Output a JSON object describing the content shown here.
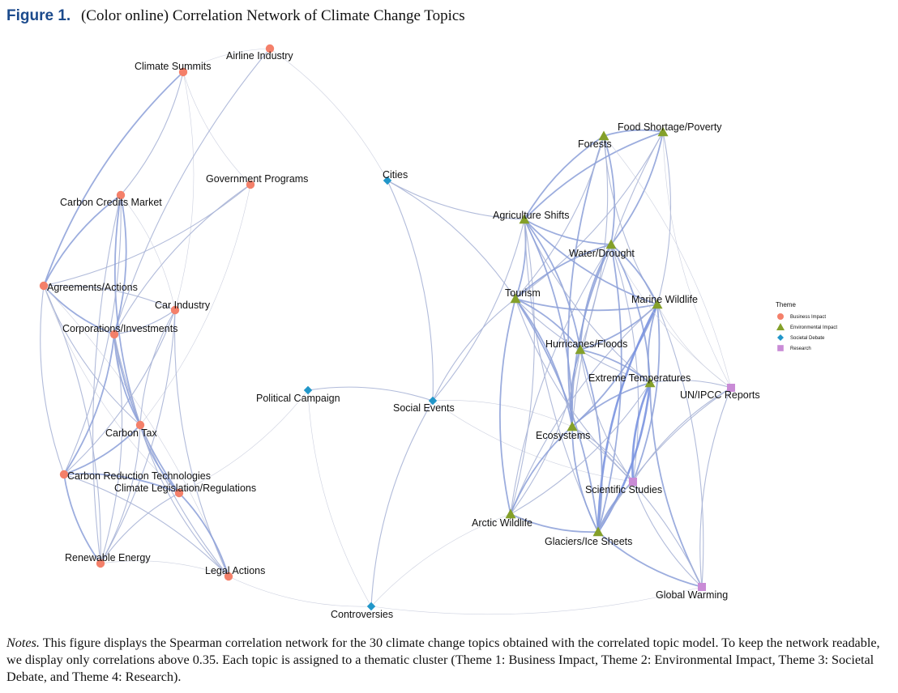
{
  "figure": {
    "label": "Figure 1.",
    "title": "(Color online) Correlation Network of Climate Change Topics"
  },
  "legend": {
    "title": "Theme",
    "entries": [
      {
        "key": "business",
        "label": "Business Impact",
        "color": "#f4806a",
        "shape": "circle"
      },
      {
        "key": "environment",
        "label": "Environmental Impact",
        "color": "#84a02a",
        "shape": "triangle"
      },
      {
        "key": "societal",
        "label": "Societal Debate",
        "color": "#2196c9",
        "shape": "diamond"
      },
      {
        "key": "research",
        "label": "Research",
        "color": "#c98bd6",
        "shape": "square"
      }
    ]
  },
  "nodes": [
    {
      "id": "airline",
      "label": "Airline Industry",
      "theme": "business"
    },
    {
      "id": "summits",
      "label": "Climate Summits",
      "theme": "business"
    },
    {
      "id": "govprog",
      "label": "Government Programs",
      "theme": "business"
    },
    {
      "id": "credits",
      "label": "Carbon Credits Market",
      "theme": "business"
    },
    {
      "id": "agreements",
      "label": "Agreements/Actions",
      "theme": "business"
    },
    {
      "id": "car",
      "label": "Car Industry",
      "theme": "business"
    },
    {
      "id": "corporations",
      "label": "Corporations/Investments",
      "theme": "business"
    },
    {
      "id": "tax",
      "label": "Carbon Tax",
      "theme": "business"
    },
    {
      "id": "reduction",
      "label": "Carbon Reduction Technologies",
      "theme": "business"
    },
    {
      "id": "legislation",
      "label": "Climate Legislation/Regulations",
      "theme": "business"
    },
    {
      "id": "renewable",
      "label": "Renewable Energy",
      "theme": "business"
    },
    {
      "id": "legal",
      "label": "Legal Actions",
      "theme": "business"
    },
    {
      "id": "cities",
      "label": "Cities",
      "theme": "societal"
    },
    {
      "id": "campaign",
      "label": "Political Campaign",
      "theme": "societal"
    },
    {
      "id": "social",
      "label": "Social Events",
      "theme": "societal"
    },
    {
      "id": "controversies",
      "label": "Controversies",
      "theme": "societal"
    },
    {
      "id": "forests",
      "label": "Forests",
      "theme": "environment"
    },
    {
      "id": "food",
      "label": "Food Shortage/Poverty",
      "theme": "environment"
    },
    {
      "id": "agri",
      "label": "Agriculture Shifts",
      "theme": "environment"
    },
    {
      "id": "water",
      "label": "Water/Drought",
      "theme": "environment"
    },
    {
      "id": "tourism",
      "label": "Tourism",
      "theme": "environment"
    },
    {
      "id": "marine",
      "label": "Marine Wildlife",
      "theme": "environment"
    },
    {
      "id": "hurricanes",
      "label": "Hurricanes/Floods",
      "theme": "environment"
    },
    {
      "id": "extreme",
      "label": "Extreme Temperatures",
      "theme": "environment"
    },
    {
      "id": "ecosystems",
      "label": "Ecosystems",
      "theme": "environment"
    },
    {
      "id": "arctic",
      "label": "Arctic Wildlife",
      "theme": "environment"
    },
    {
      "id": "glaciers",
      "label": "Glaciers/Ice Sheets",
      "theme": "environment"
    },
    {
      "id": "ipcc",
      "label": "UN/IPCC Reports",
      "theme": "research"
    },
    {
      "id": "scientific",
      "label": "Scientific Studies",
      "theme": "research"
    },
    {
      "id": "warming",
      "label": "Global Warming",
      "theme": "research"
    }
  ],
  "edges": [
    [
      "summits",
      "agreements",
      2
    ],
    [
      "summits",
      "credits",
      1
    ],
    [
      "summits",
      "govprog",
      0
    ],
    [
      "summits",
      "car",
      0
    ],
    [
      "airline",
      "corporations",
      1
    ],
    [
      "airline",
      "cities",
      0
    ],
    [
      "airline",
      "summits",
      0
    ],
    [
      "govprog",
      "agreements",
      1
    ],
    [
      "govprog",
      "corporations",
      1
    ],
    [
      "govprog",
      "tax",
      0
    ],
    [
      "credits",
      "agreements",
      2
    ],
    [
      "credits",
      "corporations",
      2
    ],
    [
      "credits",
      "tax",
      2
    ],
    [
      "credits",
      "reduction",
      1
    ],
    [
      "credits",
      "renewable",
      1
    ],
    [
      "credits",
      "car",
      0
    ],
    [
      "agreements",
      "corporations",
      2
    ],
    [
      "agreements",
      "car",
      1
    ],
    [
      "agreements",
      "reduction",
      1
    ],
    [
      "agreements",
      "renewable",
      1
    ],
    [
      "agreements",
      "tax",
      1
    ],
    [
      "agreements",
      "legal",
      0
    ],
    [
      "agreements",
      "legislation",
      0
    ],
    [
      "car",
      "corporations",
      1
    ],
    [
      "car",
      "tax",
      1
    ],
    [
      "car",
      "reduction",
      1
    ],
    [
      "car",
      "legal",
      1
    ],
    [
      "car",
      "renewable",
      1
    ],
    [
      "corporations",
      "tax",
      2
    ],
    [
      "corporations",
      "reduction",
      2
    ],
    [
      "corporations",
      "legislation",
      2
    ],
    [
      "corporations",
      "renewable",
      1
    ],
    [
      "corporations",
      "legal",
      1
    ],
    [
      "tax",
      "reduction",
      2
    ],
    [
      "tax",
      "legislation",
      2
    ],
    [
      "tax",
      "renewable",
      1
    ],
    [
      "tax",
      "legal",
      1
    ],
    [
      "reduction",
      "legislation",
      2
    ],
    [
      "reduction",
      "renewable",
      2
    ],
    [
      "reduction",
      "legal",
      1
    ],
    [
      "legislation",
      "renewable",
      1
    ],
    [
      "legislation",
      "legal",
      2
    ],
    [
      "legislation",
      "campaign",
      0
    ],
    [
      "renewable",
      "legal",
      0
    ],
    [
      "legal",
      "controversies",
      0
    ],
    [
      "campaign",
      "social",
      1
    ],
    [
      "campaign",
      "controversies",
      0
    ],
    [
      "cities",
      "social",
      1
    ],
    [
      "cities",
      "agri",
      1
    ],
    [
      "cities",
      "tourism",
      1
    ],
    [
      "social",
      "controversies",
      1
    ],
    [
      "social",
      "tourism",
      1
    ],
    [
      "social",
      "agri",
      1
    ],
    [
      "social",
      "ecosystems",
      0
    ],
    [
      "social",
      "scientific",
      0
    ],
    [
      "controversies",
      "arctic",
      0
    ],
    [
      "controversies",
      "warming",
      0
    ],
    [
      "forests",
      "food",
      2
    ],
    [
      "forests",
      "agri",
      2
    ],
    [
      "forests",
      "water",
      2
    ],
    [
      "forests",
      "marine",
      1
    ],
    [
      "forests",
      "hurricanes",
      1
    ],
    [
      "forests",
      "ecosystems",
      2
    ],
    [
      "forests",
      "tourism",
      1
    ],
    [
      "food",
      "agri",
      2
    ],
    [
      "food",
      "water",
      2
    ],
    [
      "food",
      "ecosystems",
      1
    ],
    [
      "food",
      "marine",
      1
    ],
    [
      "food",
      "ipcc",
      0
    ],
    [
      "food",
      "tourism",
      1
    ],
    [
      "agri",
      "water",
      2
    ],
    [
      "agri",
      "tourism",
      2
    ],
    [
      "agri",
      "marine",
      2
    ],
    [
      "agri",
      "hurricanes",
      2
    ],
    [
      "agri",
      "extreme",
      1
    ],
    [
      "agri",
      "ecosystems",
      2
    ],
    [
      "agri",
      "glaciers",
      1
    ],
    [
      "agri",
      "arctic",
      1
    ],
    [
      "water",
      "tourism",
      2
    ],
    [
      "water",
      "marine",
      2
    ],
    [
      "water",
      "hurricanes",
      2
    ],
    [
      "water",
      "extreme",
      2
    ],
    [
      "water",
      "ecosystems",
      2
    ],
    [
      "water",
      "glaciers",
      2
    ],
    [
      "water",
      "arctic",
      1
    ],
    [
      "water",
      "scientific",
      1
    ],
    [
      "tourism",
      "marine",
      2
    ],
    [
      "tourism",
      "hurricanes",
      2
    ],
    [
      "tourism",
      "extreme",
      1
    ],
    [
      "tourism",
      "ecosystems",
      2
    ],
    [
      "tourism",
      "arctic",
      2
    ],
    [
      "tourism",
      "glaciers",
      2
    ],
    [
      "tourism",
      "scientific",
      1
    ],
    [
      "marine",
      "hurricanes",
      2
    ],
    [
      "marine",
      "extreme",
      2
    ],
    [
      "marine",
      "ecosystems",
      2
    ],
    [
      "marine",
      "glaciers",
      3
    ],
    [
      "marine",
      "scientific",
      2
    ],
    [
      "marine",
      "ipcc",
      0
    ],
    [
      "marine",
      "warming",
      1
    ],
    [
      "marine",
      "arctic",
      1
    ],
    [
      "hurricanes",
      "extreme",
      2
    ],
    [
      "hurricanes",
      "ecosystems",
      2
    ],
    [
      "hurricanes",
      "glaciers",
      2
    ],
    [
      "hurricanes",
      "scientific",
      1
    ],
    [
      "hurricanes",
      "arctic",
      1
    ],
    [
      "extreme",
      "ecosystems",
      2
    ],
    [
      "extreme",
      "glaciers",
      3
    ],
    [
      "extreme",
      "scientific",
      3
    ],
    [
      "extreme",
      "ipcc",
      1
    ],
    [
      "extreme",
      "warming",
      2
    ],
    [
      "extreme",
      "arctic",
      1
    ],
    [
      "ecosystems",
      "glaciers",
      2
    ],
    [
      "ecosystems",
      "scientific",
      1
    ],
    [
      "ecosystems",
      "arctic",
      2
    ],
    [
      "ecosystems",
      "warming",
      1
    ],
    [
      "arctic",
      "glaciers",
      2
    ],
    [
      "glaciers",
      "scientific",
      2
    ],
    [
      "glaciers",
      "warming",
      2
    ],
    [
      "glaciers",
      "ipcc",
      1
    ],
    [
      "scientific",
      "warming",
      1
    ],
    [
      "scientific",
      "ipcc",
      1
    ],
    [
      "ipcc",
      "warming",
      1
    ],
    [
      "ipcc",
      "water",
      0
    ],
    [
      "ipcc",
      "forests",
      0
    ]
  ],
  "notes": {
    "label": "Notes.",
    "text": "This figure displays the Spearman correlation network for the 30 climate change topics obtained with the correlated topic model. To keep the network readable, we display only correlations above 0.35. Each topic is assigned to a thematic cluster (Theme 1: Business Impact, Theme 2: Environmental Impact, Theme 3: Societal Debate, and Theme 4: Research)."
  }
}
